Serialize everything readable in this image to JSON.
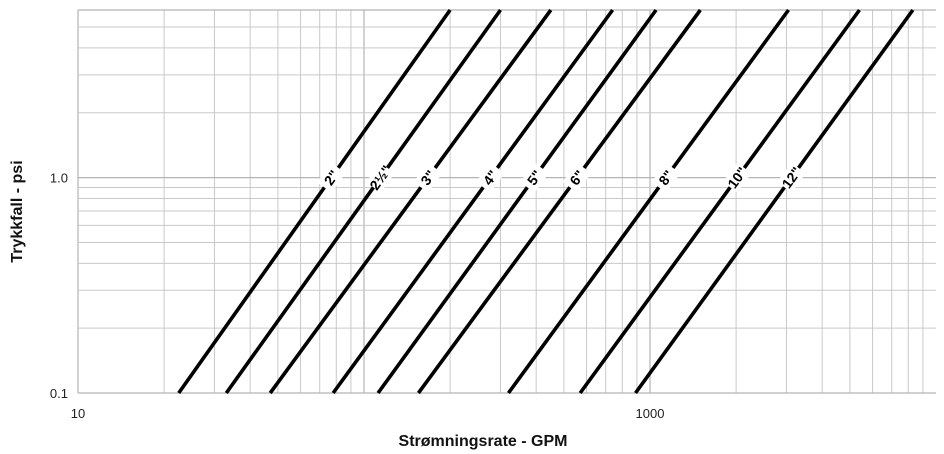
{
  "chart_data": {
    "type": "line",
    "title": "",
    "xlabel": "Strømningsrate - GPM",
    "ylabel": "Trykkfall - psi",
    "x_scale": "log",
    "y_scale": "log",
    "xlim": [
      10,
      10000
    ],
    "ylim": [
      0.1,
      6
    ],
    "grid": true,
    "x_tick_labels": [
      {
        "value": 10,
        "label": "10"
      },
      {
        "value": 1000,
        "label": "1000"
      }
    ],
    "y_tick_labels": [
      {
        "value": 0.1,
        "label": "0.1"
      },
      {
        "value": 1.0,
        "label": "1.0"
      }
    ],
    "series": [
      {
        "name": "2\"",
        "x": [
          22.5,
          200
        ],
        "y": [
          0.1,
          6
        ]
      },
      {
        "name": "2½\"",
        "x": [
          33,
          300
        ],
        "y": [
          0.1,
          6
        ]
      },
      {
        "name": "3\"",
        "x": [
          47,
          450
        ],
        "y": [
          0.1,
          6
        ]
      },
      {
        "name": "4\"",
        "x": [
          78,
          740
        ],
        "y": [
          0.1,
          6
        ]
      },
      {
        "name": "5\"",
        "x": [
          112,
          1050
        ],
        "y": [
          0.1,
          6
        ]
      },
      {
        "name": "6\"",
        "x": [
          155,
          1500
        ],
        "y": [
          0.1,
          6
        ]
      },
      {
        "name": "8\"",
        "x": [
          320,
          3050
        ],
        "y": [
          0.1,
          6
        ]
      },
      {
        "name": "10\"",
        "x": [
          570,
          5400
        ],
        "y": [
          0.1,
          6
        ]
      },
      {
        "name": "12\"",
        "x": [
          890,
          8300
        ],
        "y": [
          0.1,
          6
        ]
      }
    ]
  }
}
